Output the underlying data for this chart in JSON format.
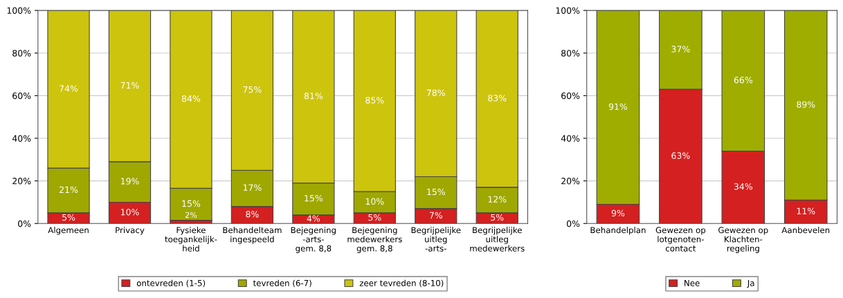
{
  "chart_data": [
    {
      "type": "bar",
      "stacked": true,
      "categories": [
        "Algemeen",
        "Privacy",
        "Fysieke\ntoegankelijk-\nheid",
        "Behandelteam\ningespeeld",
        "Bejegening\n-arts-\ngem. 8,8",
        "Bejegening\nmedewerkers\ngem. 8,8",
        "Begrijpelijke\nuitleg\n-arts-",
        "Begrijpelijke\nuitleg\nmedewerkers"
      ],
      "series": [
        {
          "name": "ontevreden (1-5)",
          "color": "#d42020",
          "values": [
            5,
            10,
            1.5,
            8,
            4,
            5,
            7,
            5
          ],
          "value_labels": [
            "5%",
            "10%",
            "2%",
            "8%",
            "4%",
            "5%",
            "7%",
            "5%"
          ]
        },
        {
          "name": "tevreden (6-7)",
          "color": "#9fa800",
          "values": [
            21,
            19,
            15,
            17,
            15,
            10,
            15,
            12
          ],
          "value_labels": [
            "21%",
            "19%",
            "15%",
            "17%",
            "15%",
            "10%",
            "15%",
            "12%"
          ]
        },
        {
          "name": "zeer tevreden (8-10)",
          "color": "#cdc40e",
          "values": [
            74,
            71,
            83.5,
            75,
            81,
            85,
            78,
            83
          ],
          "value_labels": [
            "74%",
            "71%",
            "84%",
            "75%",
            "81%",
            "85%",
            "78%",
            "83%"
          ]
        }
      ],
      "ylim": [
        0,
        100
      ],
      "yticks": [
        {
          "value": 0,
          "label": "0%"
        },
        {
          "value": 20,
          "label": "20%"
        },
        {
          "value": 40,
          "label": "40%"
        },
        {
          "value": 60,
          "label": "60%"
        },
        {
          "value": 80,
          "label": "80%"
        },
        {
          "value": 100,
          "label": "100%"
        }
      ],
      "grid": "y",
      "legend": "bottom"
    },
    {
      "type": "bar",
      "stacked": true,
      "categories": [
        "Behandelplan",
        "Gewezen op\nlotgenoten-\ncontact",
        "Gewezen op\nKlachten-\nregeling",
        "Aanbevelen"
      ],
      "series": [
        {
          "name": "Nee",
          "color": "#d42020",
          "values": [
            9,
            63,
            34,
            11
          ],
          "value_labels": [
            "9%",
            "63%",
            "34%",
            "11%"
          ]
        },
        {
          "name": "Ja",
          "color": "#9fad00",
          "values": [
            91,
            37,
            66,
            89
          ],
          "value_labels": [
            "91%",
            "37%",
            "66%",
            "89%"
          ]
        }
      ],
      "ylim": [
        0,
        100
      ],
      "yticks": [
        {
          "value": 0,
          "label": "0%"
        },
        {
          "value": 20,
          "label": "20%"
        },
        {
          "value": 40,
          "label": "40%"
        },
        {
          "value": 60,
          "label": "60%"
        },
        {
          "value": 80,
          "label": "80%"
        },
        {
          "value": 100,
          "label": "100%"
        }
      ],
      "grid": "y",
      "legend": "bottom"
    }
  ]
}
